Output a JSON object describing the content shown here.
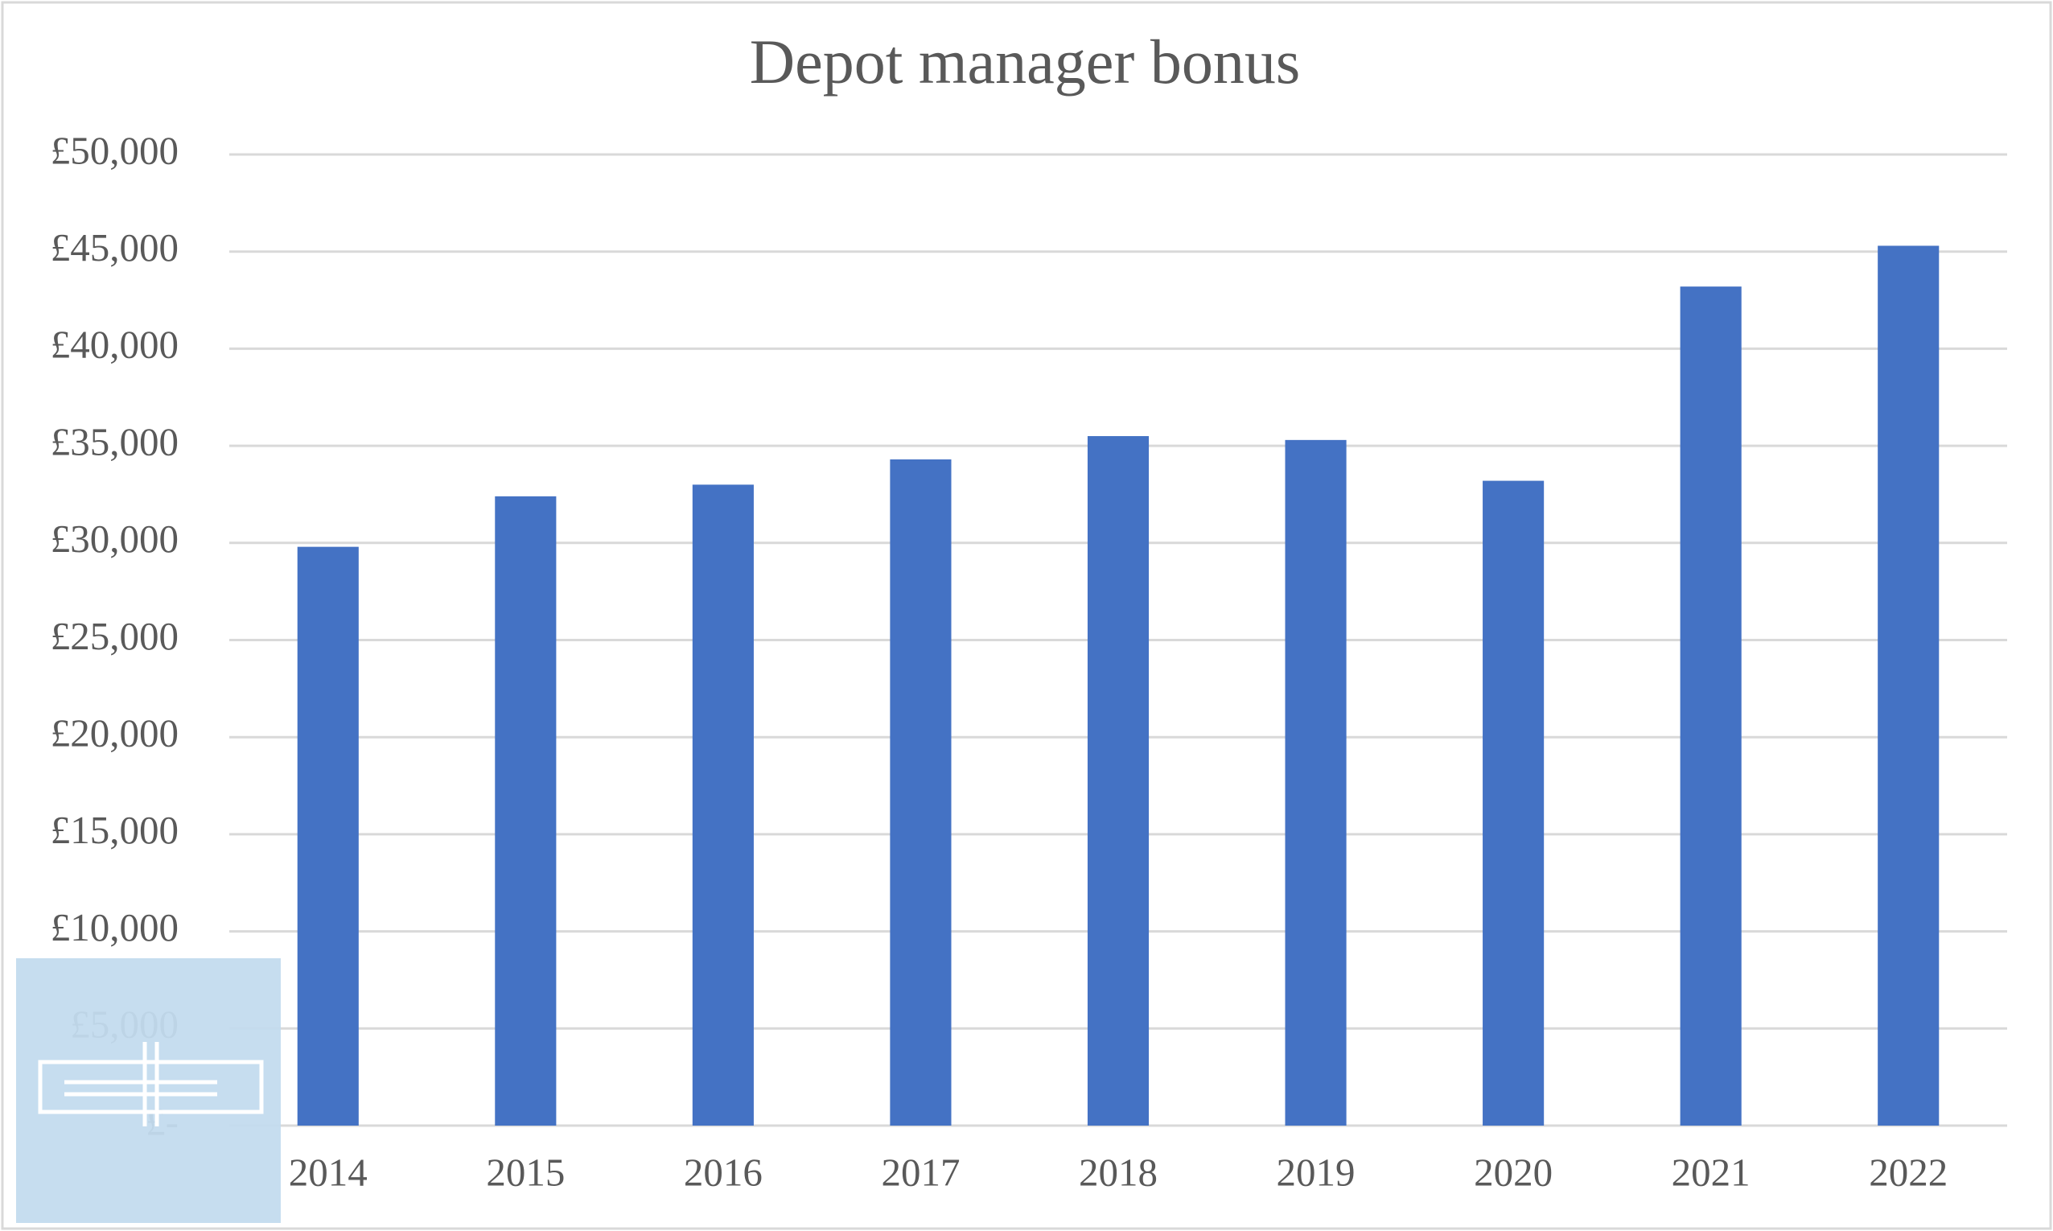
{
  "chart_data": {
    "type": "bar",
    "title": "Depot manager bonus",
    "categories": [
      "2014",
      "2015",
      "2016",
      "2017",
      "2018",
      "2019",
      "2020",
      "2021",
      "2022"
    ],
    "values": [
      29800,
      32400,
      33000,
      34300,
      35500,
      35300,
      33200,
      43200,
      45300
    ],
    "color": "#4472c4",
    "ylim": [
      0,
      50000
    ],
    "yticks": [
      {
        "value": 0,
        "label": "£-"
      },
      {
        "value": 5000,
        "label": "£5,000"
      },
      {
        "value": 10000,
        "label": "£10,000"
      },
      {
        "value": 15000,
        "label": "£15,000"
      },
      {
        "value": 20000,
        "label": "£20,000"
      },
      {
        "value": 25000,
        "label": "£25,000"
      },
      {
        "value": 30000,
        "label": "£30,000"
      },
      {
        "value": 35000,
        "label": "£35,000"
      },
      {
        "value": 40000,
        "label": "£40,000"
      },
      {
        "value": 45000,
        "label": "£45,000"
      },
      {
        "value": 50000,
        "label": "£50,000"
      }
    ],
    "grid": true
  }
}
